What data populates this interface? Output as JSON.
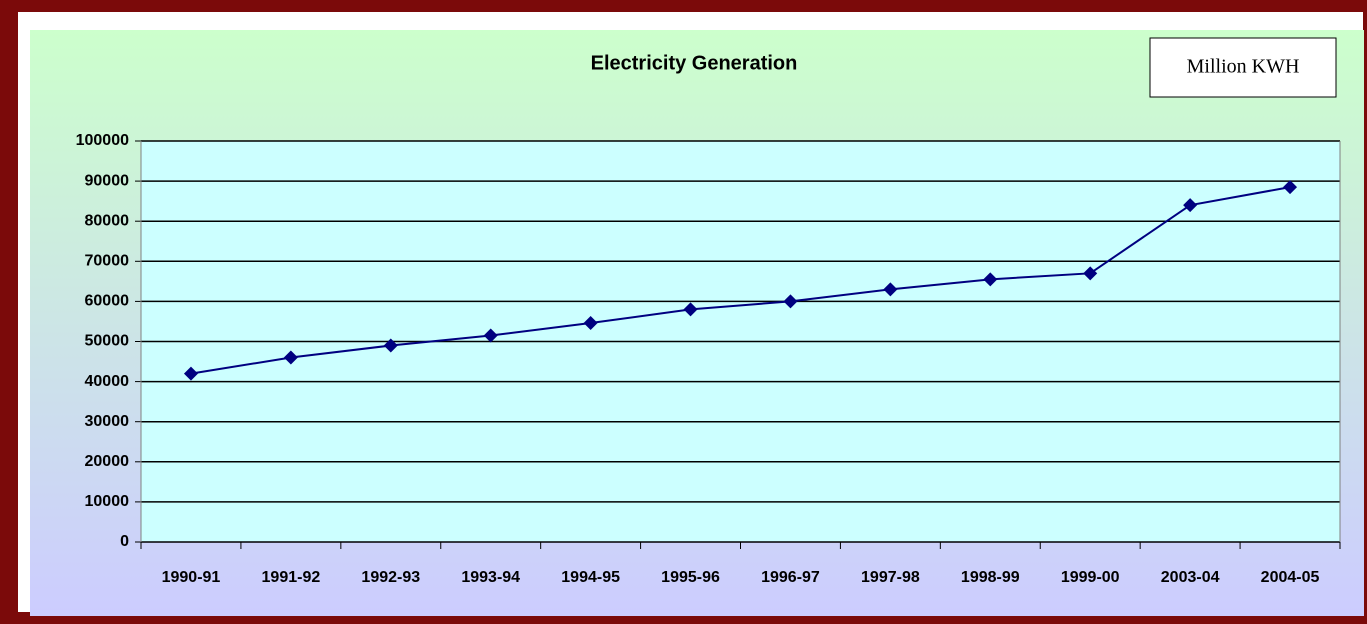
{
  "chart_data": {
    "type": "line",
    "title": "Electricity Generation",
    "annotation": "Million KWH",
    "categories": [
      "1990-91",
      "1991-92",
      "1992-93",
      "1993-94",
      "1994-95",
      "1995-96",
      "1996-97",
      "1997-98",
      "1998-99",
      "1999-00",
      "2003-04",
      "2004-05"
    ],
    "series": [
      {
        "name": "Electricity Generation",
        "color": "#000080",
        "values": [
          42000,
          46000,
          49000,
          51500,
          54600,
          58000,
          60000,
          63000,
          65500,
          67000,
          84000,
          88500
        ]
      }
    ],
    "ylim": [
      0,
      100000
    ],
    "yticks": [
      0,
      10000,
      20000,
      30000,
      40000,
      50000,
      60000,
      70000,
      80000,
      90000,
      100000
    ],
    "grid": true,
    "legend": false
  }
}
